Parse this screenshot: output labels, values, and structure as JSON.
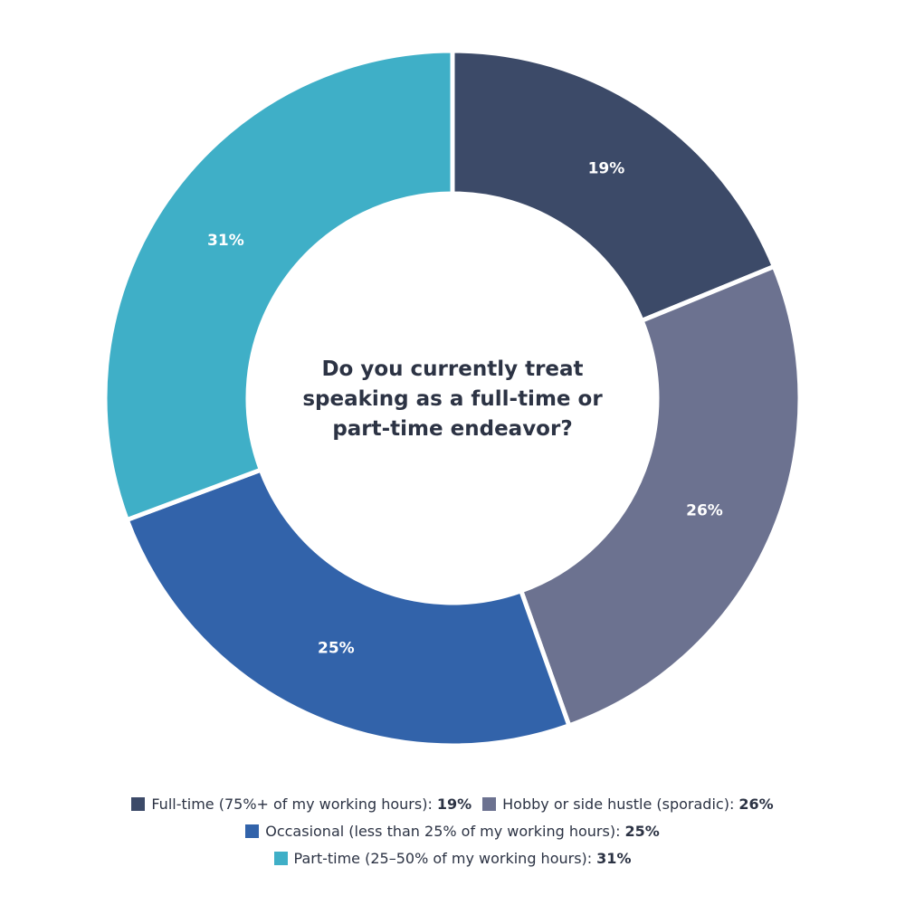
{
  "chart_data": {
    "type": "pie",
    "donut": true,
    "title": "Do you currently treat speaking as a full-time or part-time endeavor?",
    "title_lines": [
      "Do you currently treat",
      "speaking as a full-time or",
      "part-time endeavor?"
    ],
    "slices": [
      {
        "label": "Full-time (75%+ of my working hours)",
        "value": 19,
        "display": "19%",
        "color": "#3c4a68"
      },
      {
        "label": "Hobby or side hustle (sporadic)",
        "value": 26,
        "display": "26%",
        "color": "#6c7290"
      },
      {
        "label": "Occasional (less than 25% of my working hours)",
        "value": 25,
        "display": "25%",
        "color": "#3263aa"
      },
      {
        "label": "Part-time (25–50% of my working hours)",
        "value": 31,
        "display": "31%",
        "color": "#3fafc7"
      }
    ],
    "legend_placement": "bottom"
  }
}
